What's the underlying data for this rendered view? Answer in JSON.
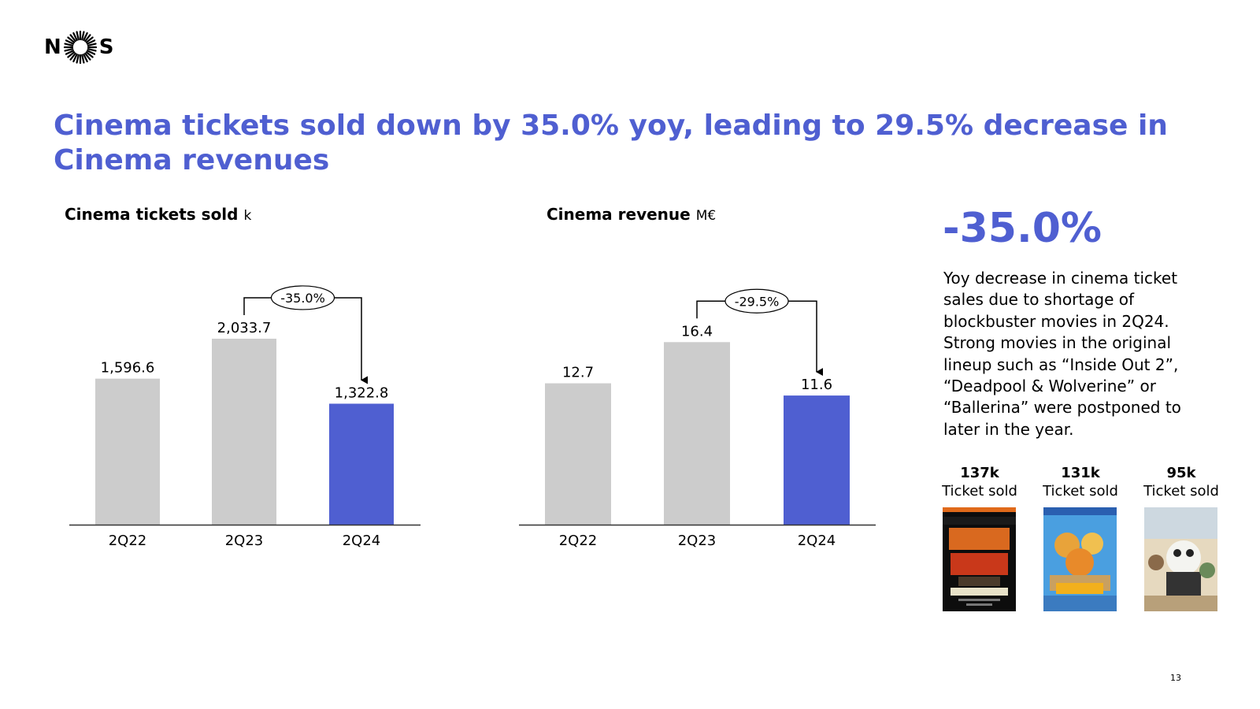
{
  "logo": {
    "left": "N",
    "right": "S"
  },
  "headline": "Cinema tickets sold down by 35.0% yoy, leading to 29.5% decrease in Cinema revenues",
  "highlight": {
    "value": "-35.0%",
    "description": "Yoy decrease in cinema ticket sales due to shortage of blockbuster movies in 2Q24. Strong movies in the original lineup such as “Inside Out 2”, “Deadpool & Wolverine” or “Ballerina” were postponed to later in the year."
  },
  "movies": [
    {
      "value": "137k",
      "label": "Ticket sold",
      "poster_icon": "bad-boys-poster-icon"
    },
    {
      "value": "131k",
      "label": "Ticket sold",
      "poster_icon": "garfield-poster-icon"
    },
    {
      "value": "95k",
      "label": "Ticket sold",
      "poster_icon": "kung-fu-panda-poster-icon"
    }
  ],
  "page_number": "13",
  "colors": {
    "accent": "#4f5fd1",
    "bar_gray": "#cccccc",
    "axis": "#333333"
  },
  "chart_data": [
    {
      "type": "bar",
      "title": "Cinema tickets sold",
      "unit": "k",
      "categories": [
        "2Q22",
        "2Q23",
        "2Q24"
      ],
      "values": [
        1596.6,
        2033.7,
        1322.8
      ],
      "value_labels": [
        "1,596.6",
        "2,033.7",
        "1,322.8"
      ],
      "highlight_index": 2,
      "ylim": [
        0,
        2240
      ],
      "annotation": {
        "label": "-35.0%",
        "from": 1,
        "to": 2
      }
    },
    {
      "type": "bar",
      "title": "Cinema revenue",
      "unit": "M€",
      "categories": [
        "2Q22",
        "2Q23",
        "2Q24"
      ],
      "values": [
        12.7,
        16.4,
        11.6
      ],
      "value_labels": [
        "12.7",
        "16.4",
        "11.6"
      ],
      "highlight_index": 2,
      "ylim": [
        0,
        18.4
      ],
      "annotation": {
        "label": "-29.5%",
        "from": 1,
        "to": 2
      }
    }
  ]
}
